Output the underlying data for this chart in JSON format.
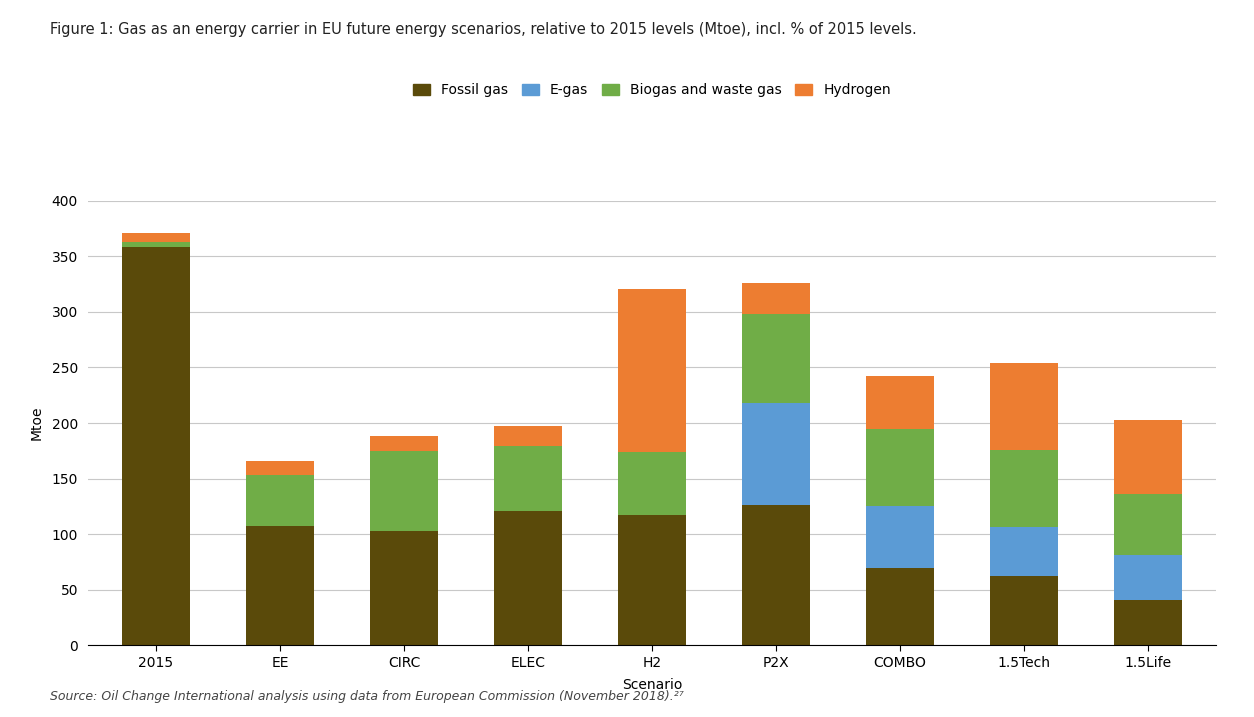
{
  "title": "Figure 1: Gas as an energy carrier in EU future energy scenarios, relative to 2015 levels (Mtoe), incl. % of 2015 levels.",
  "xlabel": "Scenario",
  "ylabel": "Mtoe",
  "source": "Source: Oil Change International analysis using data from European Commission (November 2018).²⁷",
  "categories": [
    "2015",
    "EE",
    "CIRC",
    "ELEC",
    "H2",
    "P2X",
    "COMBO",
    "1.5Tech",
    "1.5Life"
  ],
  "fossil_gas": [
    358,
    107,
    103,
    121,
    117,
    126,
    70,
    62,
    41
  ],
  "e_gas": [
    0,
    0,
    0,
    0,
    0,
    92,
    55,
    44,
    40
  ],
  "biogas_waste_gas": [
    5,
    46,
    72,
    58,
    57,
    80,
    70,
    70,
    55
  ],
  "hydrogen": [
    8,
    13,
    13,
    18,
    147,
    28,
    47,
    78,
    67
  ],
  "color_fossil": "#5a4a0a",
  "color_egas": "#5b9bd5",
  "color_biogas": "#70ad47",
  "color_hydrogen": "#ed7d31",
  "ylim": [
    0,
    400
  ],
  "yticks": [
    0,
    50,
    100,
    150,
    200,
    250,
    300,
    350,
    400
  ],
  "legend_labels": [
    "Fossil gas",
    "E-gas",
    "Biogas and waste gas",
    "Hydrogen"
  ],
  "title_fontsize": 10.5,
  "axis_fontsize": 10,
  "tick_fontsize": 10,
  "source_fontsize": 9,
  "bar_width": 0.55,
  "background_color": "#ffffff",
  "grid_color": "#c8c8c8",
  "legend_fontsize": 10
}
